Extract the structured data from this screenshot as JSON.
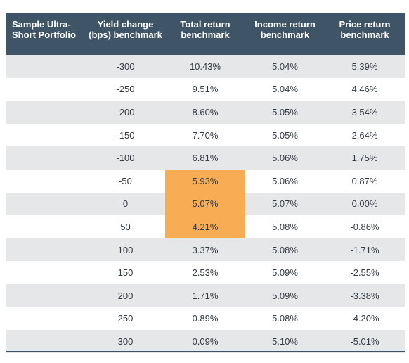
{
  "headers": [
    "Sample Ultra-Short Portfolio",
    "Yield change (bps) benchmark",
    "Total return benchmark",
    "Income return benchmark",
    "Price return benchmark"
  ],
  "rows": [
    [
      "",
      "-300",
      "10.43%",
      "5.04%",
      "5.39%"
    ],
    [
      "",
      "-250",
      "9.51%",
      "5.04%",
      "4.46%"
    ],
    [
      "",
      "-200",
      "8.60%",
      "5.05%",
      "3.54%"
    ],
    [
      "",
      "-150",
      "7.70%",
      "5.05%",
      "2.64%"
    ],
    [
      "",
      "-100",
      "6.81%",
      "5.06%",
      "1.75%"
    ],
    [
      "",
      "-50",
      "5.93%",
      "5.06%",
      "0.87%"
    ],
    [
      "",
      "0",
      "5.07%",
      "5.07%",
      "0.00%"
    ],
    [
      "",
      "50",
      "4.21%",
      "5.08%",
      "-0.86%"
    ],
    [
      "",
      "100",
      "3.37%",
      "5.08%",
      "-1.71%"
    ],
    [
      "",
      "150",
      "2.53%",
      "5.09%",
      "-2.55%"
    ],
    [
      "",
      "200",
      "1.71%",
      "5.09%",
      "-3.38%"
    ],
    [
      "",
      "250",
      "0.89%",
      "5.08%",
      "-4.20%"
    ],
    [
      "",
      "300",
      "0.09%",
      "5.10%",
      "-5.01%"
    ]
  ],
  "highlight": {
    "column": 2,
    "rows": [
      5,
      6,
      7
    ],
    "color": "#f8ac53"
  },
  "colors": {
    "header_bg": "#3f5567",
    "header_text": "#ffffff",
    "stripe": "#e6e7e9",
    "body_text": "#333b45"
  }
}
